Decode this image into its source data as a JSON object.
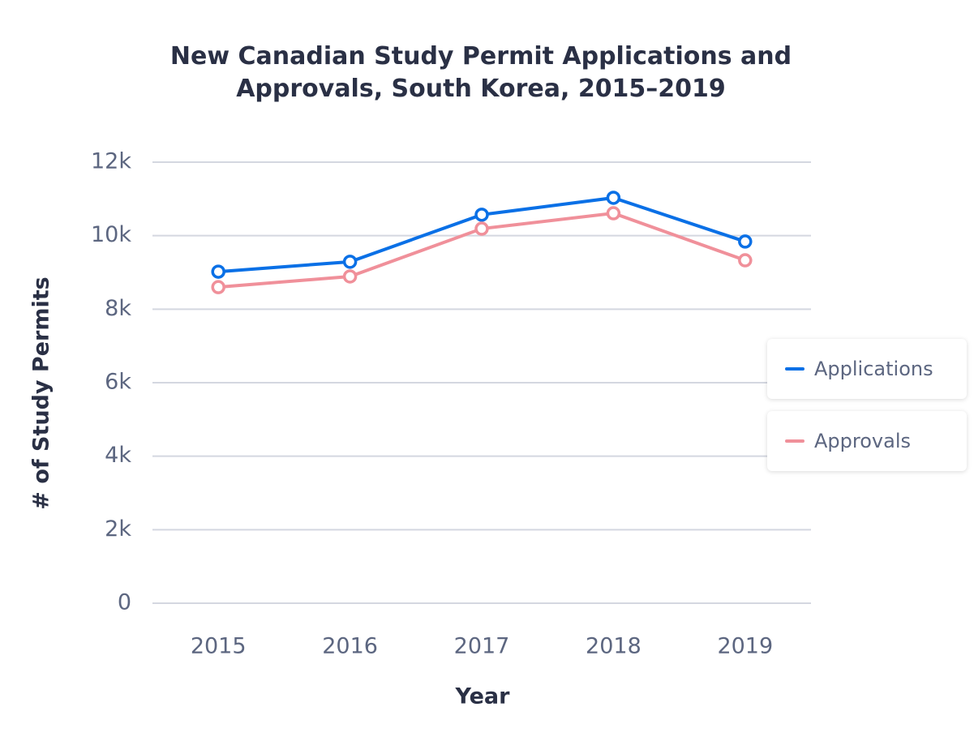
{
  "chart_data": {
    "type": "line",
    "title": "New Canadian Study Permit Applications and Approvals, South Korea, 2015–2019",
    "x_label": "Year",
    "y_label": "# of Study Permits",
    "categories": [
      "2015",
      "2016",
      "2017",
      "2018",
      "2019"
    ],
    "series": [
      {
        "name": "Applications",
        "color": "#0a70e6",
        "values": [
          9020,
          9290,
          10570,
          11030,
          9840
        ]
      },
      {
        "name": "Approvals",
        "color": "#f0909a",
        "values": [
          8600,
          8890,
          10190,
          10610,
          9330
        ]
      }
    ],
    "ylim": [
      0,
      12000
    ],
    "yticks": [
      0,
      {
        "value": 2000,
        "label": "2k"
      },
      {
        "value": 4000,
        "label": "4k"
      },
      {
        "value": 6000,
        "label": "6k"
      },
      {
        "value": 8000,
        "label": "8k"
      },
      {
        "value": 10000,
        "label": "10k"
      },
      {
        "value": 12000,
        "label": "12k"
      }
    ],
    "grid": true,
    "legend": "right"
  }
}
